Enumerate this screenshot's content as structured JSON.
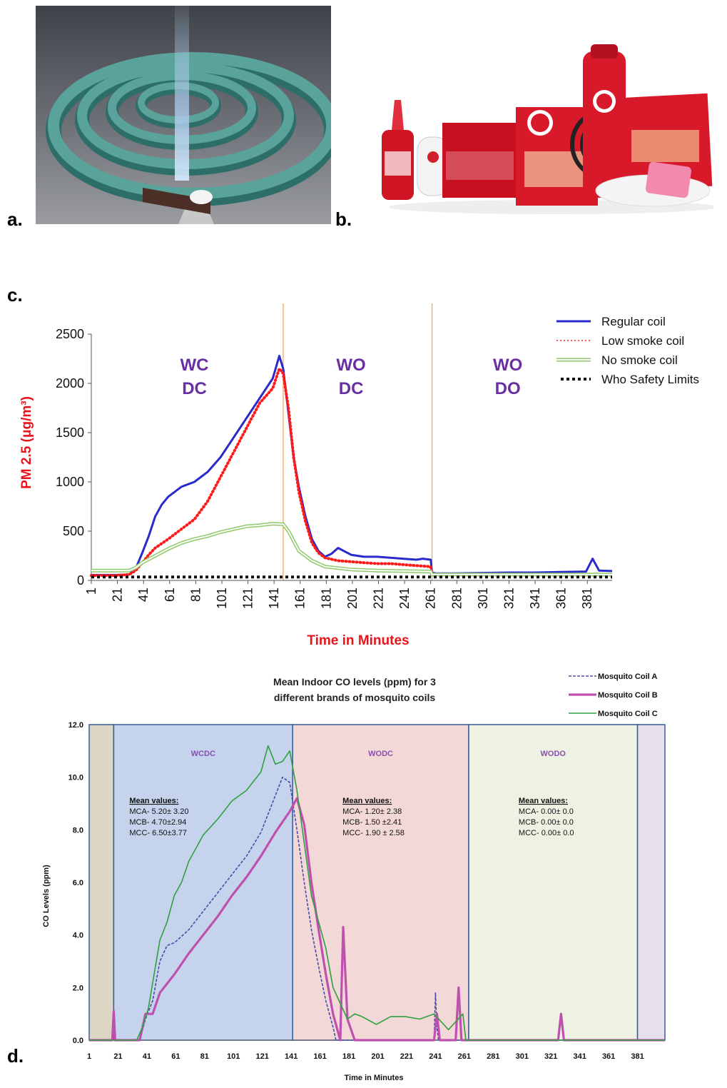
{
  "panels": {
    "a": "a.",
    "b": "b.",
    "c": "c.",
    "d": "d."
  },
  "photos": {
    "a": {
      "subject": "burning-mosquito-coil-icon",
      "colors": {
        "coil": "#4f8f88",
        "background": "#5c5f66",
        "smoke": "#a8c8e8"
      }
    },
    "b": {
      "subject": "good-knight-product-range-icon",
      "colors": {
        "brand_red": "#d8192a",
        "white": "#ffffff"
      }
    }
  },
  "chart_data": [
    {
      "panel": "c",
      "type": "line",
      "title": "",
      "xlabel": "Time in Minutes",
      "ylabel": "PM 2.5 (μg/m³)",
      "xlim": [
        1,
        400
      ],
      "ylim": [
        0,
        2500
      ],
      "y_ticks": [
        "0",
        "500",
        "1000",
        "1500",
        "2000",
        "2500"
      ],
      "x_ticks": [
        "1",
        "21",
        "41",
        "61",
        "81",
        "101",
        "121",
        "141",
        "161",
        "181",
        "201",
        "221",
        "241",
        "261",
        "281",
        "301",
        "321",
        "341",
        "361",
        "381"
      ],
      "grid": false,
      "legend_position": "top-right",
      "phase_boundaries": [
        148,
        262
      ],
      "phase_labels": [
        {
          "lines": [
            "WC",
            "DC"
          ],
          "x": 80,
          "y_top": 2130
        },
        {
          "lines": [
            "WO",
            "DC"
          ],
          "x": 200,
          "y_top": 2130
        },
        {
          "lines": [
            "WO",
            "DO"
          ],
          "x": 320,
          "y_top": 2130
        }
      ],
      "colors": {
        "phase_label": "#6a2fa0",
        "axis_label": "#e8141b",
        "boundary": "#f0a050"
      },
      "series": [
        {
          "name": "Regular coil",
          "color": "#2a2acc",
          "style": "solid",
          "x": [
            1,
            20,
            30,
            35,
            40,
            45,
            50,
            55,
            60,
            65,
            70,
            80,
            90,
            100,
            110,
            120,
            130,
            140,
            145,
            148,
            152,
            156,
            160,
            165,
            170,
            175,
            180,
            185,
            190,
            200,
            210,
            220,
            230,
            240,
            250,
            255,
            261,
            262,
            265,
            280,
            300,
            320,
            340,
            360,
            380,
            385,
            390,
            400
          ],
          "y": [
            55,
            55,
            60,
            120,
            280,
            450,
            650,
            770,
            850,
            900,
            950,
            1000,
            1100,
            1250,
            1450,
            1650,
            1850,
            2050,
            2280,
            2150,
            1700,
            1250,
            950,
            650,
            420,
            300,
            240,
            270,
            330,
            260,
            240,
            240,
            230,
            220,
            210,
            220,
            210,
            80,
            70,
            70,
            75,
            80,
            80,
            85,
            90,
            220,
            100,
            95
          ]
        },
        {
          "name": "Low smoke coil",
          "color": "#ff1a1a",
          "style": "dotted",
          "x": [
            1,
            20,
            30,
            35,
            40,
            45,
            50,
            60,
            70,
            80,
            90,
            100,
            110,
            120,
            130,
            140,
            145,
            148,
            152,
            156,
            160,
            165,
            170,
            175,
            180,
            190,
            200,
            210,
            220,
            230,
            240,
            250,
            261,
            262,
            265,
            280,
            300,
            320,
            340,
            360,
            380,
            400
          ],
          "y": [
            50,
            50,
            60,
            100,
            180,
            260,
            330,
            420,
            520,
            620,
            800,
            1050,
            1300,
            1550,
            1800,
            1950,
            2150,
            2100,
            1750,
            1250,
            900,
            600,
            380,
            280,
            230,
            200,
            190,
            180,
            170,
            170,
            160,
            150,
            140,
            60,
            55,
            55,
            55,
            55,
            55,
            55,
            55,
            55
          ]
        },
        {
          "name": "No smoke coil",
          "color": "#8ec96b",
          "style": "double",
          "x": [
            1,
            30,
            35,
            40,
            50,
            60,
            70,
            80,
            90,
            100,
            110,
            120,
            130,
            140,
            148,
            152,
            156,
            160,
            170,
            180,
            200,
            220,
            240,
            261,
            262,
            280,
            300,
            330,
            360,
            400
          ],
          "y": [
            100,
            100,
            130,
            180,
            250,
            320,
            380,
            420,
            450,
            490,
            520,
            550,
            560,
            575,
            570,
            500,
            400,
            300,
            200,
            140,
            110,
            100,
            95,
            90,
            60,
            60,
            60,
            60,
            60,
            60
          ]
        },
        {
          "name": "Who Safety Limits",
          "color": "#111111",
          "style": "thick-dotted",
          "x": [
            1,
            400
          ],
          "y": [
            35,
            35
          ]
        }
      ]
    },
    {
      "panel": "d",
      "type": "line",
      "title": "Mean Indoor CO levels (ppm) for 3 different brands of mosquito coils",
      "xlabel": "Time in Minutes",
      "ylabel": "CO Levels (ppm)",
      "xlim": [
        1,
        400
      ],
      "ylim": [
        0,
        12
      ],
      "y_ticks": [
        "0.0",
        "2.0",
        "4.0",
        "6.0",
        "8.0",
        "10.0",
        "12.0"
      ],
      "x_ticks": [
        "1",
        "21",
        "41",
        "61",
        "81",
        "101",
        "121",
        "141",
        "161",
        "181",
        "201",
        "221",
        "241",
        "261",
        "281",
        "301",
        "321",
        "341",
        "361",
        "381"
      ],
      "grid": false,
      "legend_position": "top-right",
      "regions": [
        {
          "from": 1,
          "to": 18,
          "color": "#ddd6c2",
          "label": ""
        },
        {
          "from": 18,
          "to": 142,
          "color": "#c5d4ec",
          "label": "WCDC"
        },
        {
          "from": 142,
          "to": 264,
          "color": "#f3d8d8",
          "label": "WODC"
        },
        {
          "from": 264,
          "to": 381,
          "color": "#eef2e2",
          "label": "WODO"
        },
        {
          "from": 381,
          "to": 400,
          "color": "#e6dfee",
          "label": ""
        }
      ],
      "mean_values": [
        {
          "heading": "Mean values:",
          "lines": [
            "MCA- 5.20± 3.20",
            "MCB- 4.70±2.94",
            "MCC- 6.50±3.77"
          ]
        },
        {
          "heading": "Mean values:",
          "lines": [
            "MCA- 1.20± 2.38",
            "MCB- 1.50 ±2.41",
            "MCC- 1.90 ± 2.58"
          ]
        },
        {
          "heading": "Mean values:",
          "lines": [
            "MCA- 0.00± 0.0",
            "MCB- 0.00± 0.0",
            "MCC- 0.00± 0.0"
          ]
        }
      ],
      "colors": {
        "region_label": "#8a4fb0",
        "region_border": "#3b5b95"
      },
      "series": [
        {
          "name": "Mosquito Coil A",
          "color": "#4b4ba8",
          "style": "dashed",
          "x": [
            1,
            36,
            40,
            45,
            50,
            55,
            60,
            70,
            80,
            90,
            100,
            110,
            120,
            130,
            135,
            140,
            145,
            150,
            155,
            160,
            165,
            170,
            172,
            175,
            180,
            185,
            190,
            200,
            220,
            240,
            241,
            242,
            243,
            245,
            260,
            300,
            400
          ],
          "y": [
            0,
            0,
            0.8,
            1.5,
            3.0,
            3.6,
            3.7,
            4.2,
            4.9,
            5.6,
            6.3,
            7.0,
            7.9,
            9.3,
            10.0,
            9.8,
            8.0,
            6.0,
            4.2,
            2.8,
            1.5,
            0.5,
            0,
            0,
            0,
            0,
            0,
            0,
            0,
            0,
            1.8,
            0.5,
            0,
            0,
            0,
            0,
            0
          ]
        },
        {
          "name": "Mosquito Coil B",
          "color": "#c050b0",
          "style": "solid-thick",
          "x": [
            1,
            17,
            18,
            19,
            20,
            36,
            40,
            45,
            50,
            60,
            70,
            80,
            90,
            100,
            110,
            120,
            130,
            140,
            145,
            150,
            155,
            160,
            165,
            170,
            175,
            177,
            180,
            185,
            190,
            200,
            220,
            240,
            242,
            244,
            255,
            257,
            259,
            300,
            326,
            328,
            330,
            400
          ],
          "y": [
            0,
            0,
            1.1,
            0,
            0,
            0,
            1.0,
            1.0,
            1.8,
            2.5,
            3.3,
            4.0,
            4.7,
            5.5,
            6.2,
            7.0,
            7.9,
            8.7,
            9.2,
            8.2,
            6.0,
            4.2,
            2.5,
            1.0,
            0,
            4.3,
            0.8,
            0,
            0,
            0,
            0,
            0,
            1.0,
            0,
            0,
            2.0,
            0,
            0,
            0,
            1.0,
            0,
            0
          ]
        },
        {
          "name": "Mosquito Coil C",
          "color": "#2fa040",
          "style": "solid",
          "x": [
            1,
            34,
            38,
            42,
            46,
            50,
            55,
            60,
            65,
            70,
            80,
            90,
            100,
            110,
            120,
            125,
            130,
            135,
            140,
            145,
            150,
            155,
            160,
            165,
            170,
            180,
            185,
            190,
            200,
            210,
            220,
            230,
            240,
            250,
            260,
            262,
            300,
            400
          ],
          "y": [
            0,
            0,
            0.5,
            1.2,
            2.5,
            3.8,
            4.5,
            5.5,
            6.0,
            6.8,
            7.8,
            8.4,
            9.1,
            9.5,
            10.2,
            11.2,
            10.5,
            10.6,
            11.0,
            9.5,
            7.5,
            5.5,
            4.5,
            3.5,
            2.0,
            0.8,
            1.0,
            0.9,
            0.6,
            0.9,
            0.9,
            0.8,
            1.0,
            0.4,
            1.0,
            0,
            0,
            0
          ]
        }
      ]
    }
  ]
}
